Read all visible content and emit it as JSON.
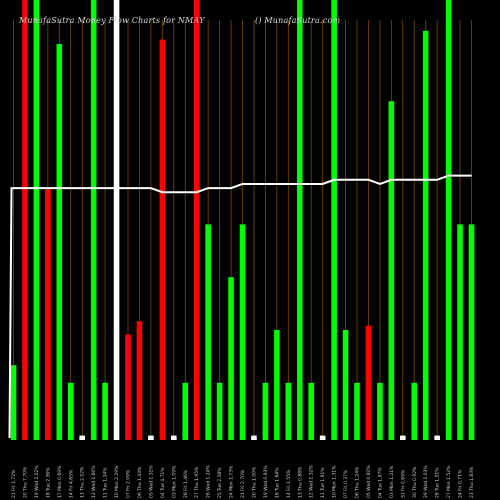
{
  "header": {
    "title_left": "MunafaSutra  Money Flow  Charts for NMAY",
    "title_right": "() MunafaSutra.com"
  },
  "chart_data": {
    "type": "bar",
    "title": "Money Flow Charts for NMAY",
    "colors": {
      "up": "#00ff00",
      "down": "#ff0000",
      "flat": "#ffffff",
      "grid": "#7a4a00",
      "line": "#ffffff",
      "background": "#000000"
    },
    "categories": [
      "21 Fri Mar 2025",
      "20 Thu Mar 2025",
      "19 Wed Mar 2025",
      "18 Tue Mar 2025",
      "17 Mon Mar 2025",
      "14 Fri Mar 2025",
      "13 Thu Mar 2025",
      "12 Wed Mar 2025",
      "11 Tue Mar 2025",
      "10 Mon Mar 2025",
      "07 Fri Mar 2025",
      "06 Thu Mar 2025",
      "05 Wed Mar 2025",
      "04 Tue Mar 2025",
      "03 Mon Mar 2025",
      "28 Fri Feb 2025",
      "27 Thu Feb 2025",
      "26 Wed Feb 2025",
      "25 Tue Feb 2025",
      "24 Mon Feb 2025",
      "21 Fri Feb 2025",
      "20 Thu Feb 2025",
      "19 Wed Feb 2025",
      "18 Tue Feb 2025",
      "14 Fri Feb 2025",
      "13 Thu Feb 2025",
      "12 Wed Feb 2025",
      "11 Tue Feb 2025",
      "10 Mon Feb 2025",
      "07 Fri Feb 2025",
      "06 Thu Feb 2025",
      "05 Wed Feb 2025",
      "04 Tue Feb 2025",
      "03 Mon Feb 2025",
      "31 Fri Jan 2025",
      "30 Thu Jan 2025",
      "29 Wed Jan 2025",
      "28 Tue Jan 2025",
      "27 Mon Jan 2025",
      "24 Fri Jan 2025",
      "23 Thu Jan 2025"
    ],
    "flows": [
      "up",
      "down",
      "up",
      "down",
      "up",
      "up",
      "flat",
      "up",
      "up",
      "flat",
      "down",
      "down",
      "flat",
      "down",
      "flat",
      "up",
      "down",
      "up",
      "up",
      "up",
      "up",
      "flat",
      "up",
      "up",
      "up",
      "up",
      "up",
      "flat",
      "up",
      "up",
      "up",
      "down",
      "up",
      "up",
      "flat",
      "up",
      "up",
      "flat",
      "up",
      "up",
      "up"
    ],
    "bar_values": [
      0.17,
      1.0,
      1.0,
      0.57,
      0.9,
      0.13,
      0.01,
      1.0,
      0.13,
      1.0,
      0.24,
      0.27,
      0.01,
      0.91,
      0.01,
      0.13,
      1.0,
      0.49,
      0.13,
      0.37,
      0.49,
      0.01,
      0.13,
      0.25,
      0.13,
      1.0,
      0.13,
      0.01,
      1.0,
      0.25,
      0.13,
      0.26,
      0.13,
      0.77,
      0.01,
      0.13,
      0.93,
      0.01,
      1.0,
      0.49,
      0.49
    ],
    "price_line": [
      0.61,
      0.61,
      0.61,
      0.61,
      0.61,
      0.61,
      0.61,
      0.61,
      0.61,
      0.61,
      0.61,
      0.61,
      0.61,
      0.6,
      0.6,
      0.6,
      0.6,
      0.61,
      0.61,
      0.61,
      0.62,
      0.62,
      0.62,
      0.62,
      0.62,
      0.62,
      0.62,
      0.62,
      0.63,
      0.63,
      0.63,
      0.63,
      0.62,
      0.63,
      0.63,
      0.63,
      0.63,
      0.63,
      0.64,
      0.64,
      0.64
    ],
    "ylim": [
      0,
      1
    ],
    "grid": true,
    "tick_labels": [
      "21 Fri 1.72%",
      "20 Thu 7.70%",
      "19 Wed 2.02%",
      "18 Tue 2.36%",
      "17 Mon 0.69%",
      "14 Fri 4.65%",
      "13 Thu 2.02%",
      "12 Wed 1.60%",
      "11 Tue 1.34%",
      "10 Mon 2.29%",
      "07 Fri 2.09%",
      "06 Thu 1.44%",
      "05 Wed 1.31%",
      "04 Tue 4.71%",
      "03 Mon 1.09%",
      "28 Fri 1.46%",
      "27 Thu 1.95%",
      "26 Wed 1.24%",
      "25 Tue 2.18%",
      "24 Mon 1.73%",
      "21 Fri 2.70%",
      "20 Thu 1.00%",
      "19 Wed 0.93%",
      "18 Tue 1.64%",
      "14 Fri 1.55%",
      "13 Thu 0.88%",
      "12 Wed 1.32%",
      "11 Tue 1.91%",
      "10 Mon 1.31%",
      "07 Fri 0.37%",
      "06 Thu 1.24%",
      "05 Wed 0.82%",
      "04 Tue 1.97%",
      "03 Mon 1.21%",
      "31 Fri 0.69%",
      "30 Thu 0.92%",
      "29 Wed 1.03%",
      "28 Tue 1.51%",
      "27 Mon 1.52%",
      "24 Fri 0.71%",
      "23 Thu 1.83%"
    ]
  }
}
